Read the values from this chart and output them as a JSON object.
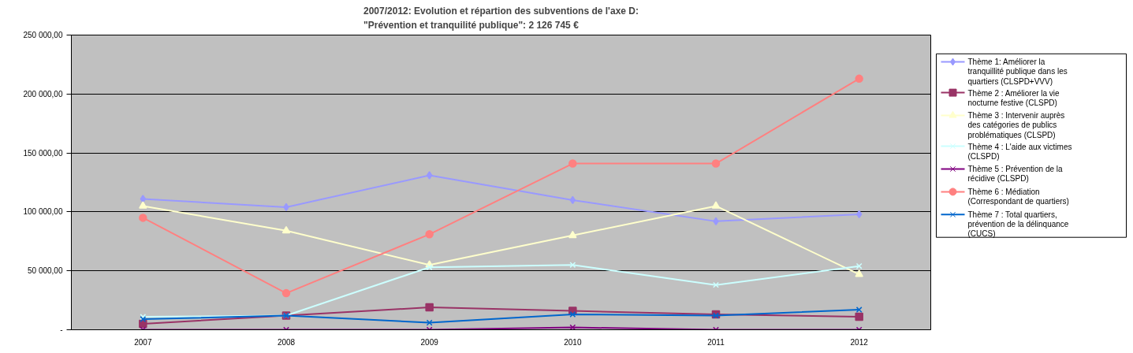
{
  "chart_data": {
    "type": "line",
    "title": "2007/2012: Evolution et répartion des subventions de l'axe D:\n\"Prévention et tranquilité publique\": 2 126 745 €",
    "categories": [
      "2007",
      "2008",
      "2009",
      "2010",
      "2011",
      "2012"
    ],
    "ylim": [
      0,
      250000
    ],
    "yticks": [
      {
        "value": 0,
        "label": "-"
      },
      {
        "value": 50000,
        "label": "50 000,00"
      },
      {
        "value": 100000,
        "label": "100 000,00"
      },
      {
        "value": 150000,
        "label": "150 000,00"
      },
      {
        "value": 200000,
        "label": "200 000,00"
      },
      {
        "value": 250000,
        "label": "250 000,00"
      }
    ],
    "grid": "y",
    "legend": "right",
    "series": [
      {
        "name": "Thème 1: Améliorer la tranquillité publique dans les quartiers (CLSPD+VVV)",
        "color": "#9999ff",
        "marker": "diamond",
        "values": [
          111000,
          104000,
          131000,
          110000,
          92000,
          98000
        ]
      },
      {
        "name": "Thème 2 : Améliorer la vie nocturne festive (CLSPD)",
        "color": "#993366",
        "marker": "square",
        "values": [
          5000,
          12000,
          19000,
          16000,
          13000,
          11000
        ]
      },
      {
        "name": "Thème 3 : Intervenir auprès des catégories de publics problématiques (CLSPD)",
        "color": "#ffffcc",
        "marker": "triangle",
        "values": [
          105000,
          84000,
          55000,
          80000,
          105000,
          47000
        ]
      },
      {
        "name": "Thème 4 : L'aide aux victimes (CLSPD)",
        "color": "#ccffff",
        "marker": "cross",
        "values": [
          11000,
          12000,
          53000,
          55000,
          38000,
          54000
        ]
      },
      {
        "name": "Thème 5 : Prévention de la récidive (CLSPD)",
        "color": "#800080",
        "marker": "cross",
        "values": [
          0,
          0,
          0,
          2000,
          0,
          0
        ]
      },
      {
        "name": "Thème 6 : Médiation (Correspondant de quartiers)",
        "color": "#ff8080",
        "marker": "circle",
        "values": [
          95000,
          31000,
          81000,
          141000,
          141000,
          213000
        ]
      },
      {
        "name": "Thème 7 : Total quartiers, prévention de la délinquance (CUCS)",
        "color": "#0066cc",
        "marker": "cross",
        "values": [
          9000,
          12000,
          6000,
          13000,
          12000,
          17000
        ]
      }
    ]
  }
}
